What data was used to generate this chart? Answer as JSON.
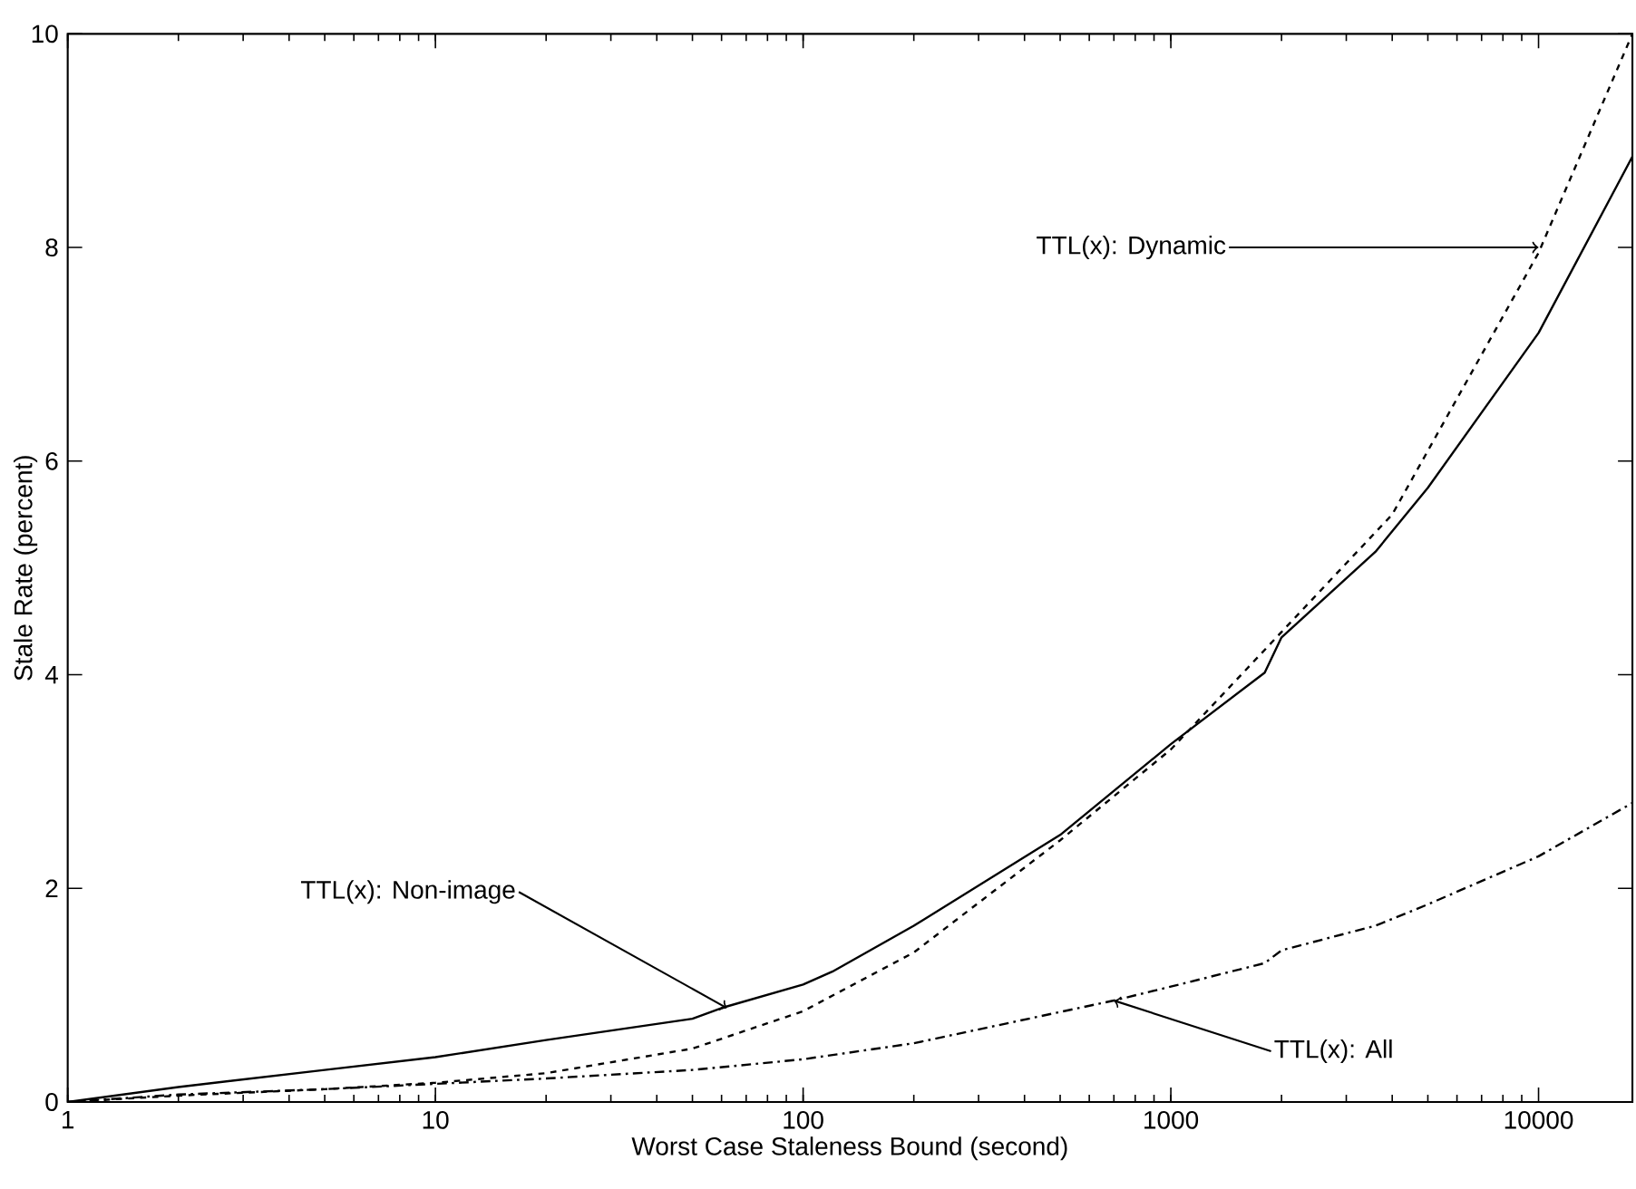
{
  "chart_data": {
    "type": "line",
    "xlabel": "Worst Case Staleness Bound (second)",
    "ylabel": "Stale Rate (percent)",
    "log": "x",
    "xlim": [
      1,
      18000
    ],
    "ylim": [
      0,
      10
    ],
    "xticks": [
      1,
      10,
      100,
      1000,
      10000
    ],
    "yticks": [
      0,
      2,
      4,
      6,
      8,
      10
    ],
    "grid": false,
    "series": [
      {
        "color": "#000000",
        "line_style": "solid",
        "x": [
          1,
          2,
          5,
          10,
          20,
          50,
          60,
          100,
          120,
          200,
          500,
          1000,
          1800,
          2000,
          3600,
          5000,
          10000,
          18000
        ],
        "values": [
          0,
          0.14,
          0.3,
          0.42,
          0.58,
          0.78,
          0.88,
          1.1,
          1.22,
          1.65,
          2.5,
          3.35,
          4.02,
          4.35,
          5.15,
          5.75,
          7.2,
          8.85
        ]
      },
      {
        "color": "#000000",
        "line_style": "dashed",
        "x": [
          1,
          2,
          5,
          10,
          20,
          50,
          100,
          200,
          500,
          1000,
          2000,
          4000,
          10000,
          18000
        ],
        "values": [
          0,
          0.06,
          0.12,
          0.18,
          0.27,
          0.5,
          0.85,
          1.4,
          2.45,
          3.3,
          4.4,
          5.5,
          7.95,
          10
        ]
      },
      {
        "color": "#000000",
        "line_style": "dashdot",
        "x": [
          1,
          2,
          5,
          10,
          20,
          50,
          100,
          200,
          700,
          1000,
          1800,
          2000,
          3600,
          5000,
          10000,
          18000
        ],
        "values": [
          0,
          0.07,
          0.12,
          0.17,
          0.22,
          0.3,
          0.4,
          0.55,
          0.95,
          1.08,
          1.3,
          1.42,
          1.65,
          1.85,
          2.3,
          2.8
        ]
      }
    ],
    "annotations": [
      {
        "text": "TTL(x): Dynamic",
        "x": 10000,
        "y": 8
      },
      {
        "text": "TTL(x): Non-image",
        "x": 62,
        "y": 0.88
      },
      {
        "text": "TTL(x): All",
        "x": 700,
        "y": 0.95
      }
    ]
  }
}
